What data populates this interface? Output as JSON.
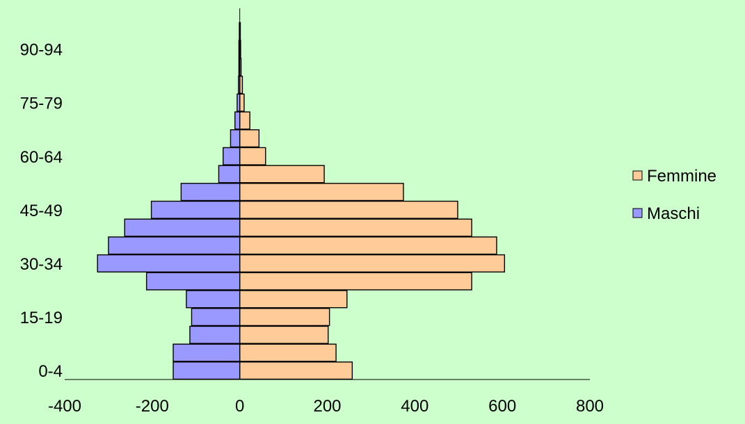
{
  "colors": {
    "background": "#ccffcc",
    "femmine": "#ffcc99",
    "maschi": "#9999ff",
    "outline": "#000000"
  },
  "chart_data": {
    "type": "bar",
    "orientation": "horizontal",
    "stacking": "diverging",
    "categories": [
      "0-4",
      "5-9",
      "10-14",
      "15-19",
      "20-24",
      "25-29",
      "30-34",
      "35-39",
      "40-44",
      "45-49",
      "50-54",
      "55-59",
      "60-64",
      "65-69",
      "70-74",
      "75-79",
      "80-84",
      "85-89",
      "90-94",
      "95-99"
    ],
    "tick_labels": [
      "0-4",
      "15-19",
      "30-34",
      "45-49",
      "60-64",
      "75-79",
      "90-94"
    ],
    "series": [
      {
        "name": "Femmine",
        "color": "#ffcc99",
        "values": [
          257,
          220,
          202,
          205,
          245,
          530,
          605,
          587,
          530,
          498,
          374,
          193,
          59,
          44,
          23,
          10,
          6,
          3,
          2,
          1
        ]
      },
      {
        "name": "Maschi",
        "color": "#9999ff",
        "values": [
          -152,
          -152,
          -114,
          -110,
          -122,
          -213,
          -325,
          -300,
          -263,
          -202,
          -134,
          -48,
          -38,
          -21,
          -11,
          -6,
          -3,
          -2,
          -2,
          -1
        ]
      }
    ],
    "xlim": [
      -400,
      800
    ],
    "xticks": [
      -400,
      -200,
      0,
      200,
      400,
      600,
      800
    ],
    "xlabel": "",
    "ylabel": "",
    "title": "",
    "legend": {
      "position": "right",
      "entries": [
        "Femmine",
        "Maschi"
      ]
    },
    "grid": false
  }
}
